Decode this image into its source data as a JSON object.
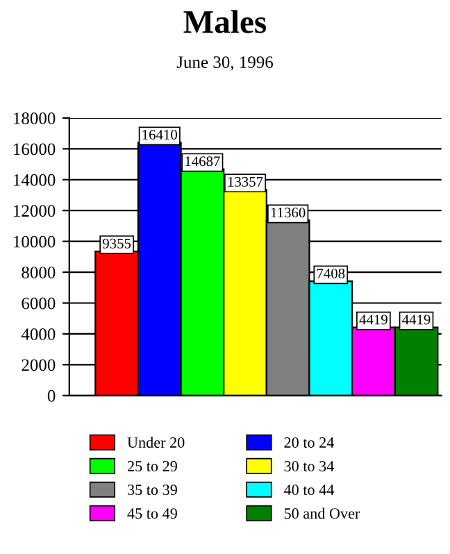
{
  "chart_data": {
    "type": "bar",
    "title": "Males",
    "subtitle": "June 30, 1996",
    "categories": [
      null
    ],
    "series": [
      {
        "name": "Under 20",
        "color": "#ff0000",
        "values": [
          9355
        ]
      },
      {
        "name": "20 to 24",
        "color": "#0000ff",
        "values": [
          16410
        ]
      },
      {
        "name": "25 to 29",
        "color": "#00ff00",
        "values": [
          14687
        ]
      },
      {
        "name": "30 to 34",
        "color": "#ffff00",
        "values": [
          13357
        ]
      },
      {
        "name": "35 to 39",
        "color": "#808080",
        "values": [
          11360
        ]
      },
      {
        "name": "40 to 44",
        "color": "#00ffff",
        "values": [
          7408
        ]
      },
      {
        "name": "45 to 49",
        "color": "#ff00ff",
        "values": [
          4419
        ]
      },
      {
        "name": "50 and Over",
        "color": "#008000",
        "values": [
          4419
        ]
      }
    ],
    "ylim": [
      0,
      18000
    ],
    "yticks": [
      0,
      2000,
      4000,
      6000,
      8000,
      10000,
      12000,
      14000,
      16000,
      18000
    ],
    "grid": "y",
    "legend": "bottom",
    "data_labels": true
  }
}
